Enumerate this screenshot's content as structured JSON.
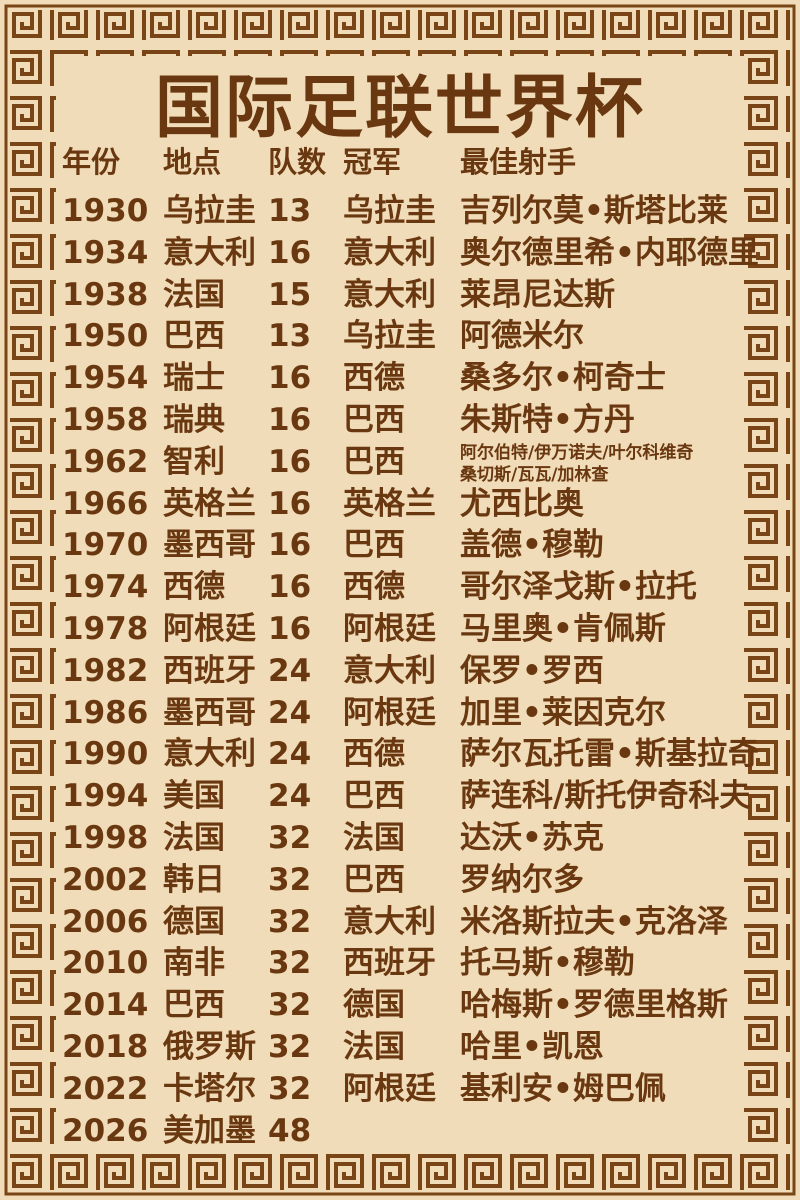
{
  "title": "国际足联世界杯",
  "table": {
    "header": [
      "年份",
      "地点",
      "队数",
      "冠军",
      "最佳射手"
    ],
    "rows": [
      [
        "1930",
        "乌拉圭",
        13,
        "乌拉圭",
        "吉列尔莫•斯塔比莱"
      ],
      [
        "1934",
        "意大利",
        16,
        "意大利",
        "奥尔德里希•内耶德里"
      ],
      [
        "1938",
        "法国",
        15,
        "意大利",
        "莱昂尼达斯"
      ],
      [
        "1950",
        "巴西",
        13,
        "乌拉圭",
        "阿德米尔"
      ],
      [
        "1954",
        "瑞士",
        16,
        "西德",
        "桑多尔•柯奇士"
      ],
      [
        "1958",
        "瑞典",
        16,
        "巴西",
        "朱斯特•方丹"
      ],
      [
        "1962",
        "智利",
        16,
        "巴西",
        [
          "阿尔伯特/伊万诺夫/叶尔科维奇",
          "桑切斯/瓦瓦/加林查"
        ]
      ],
      [
        "1966",
        "英格兰",
        16,
        "英格兰",
        "尤西比奥"
      ],
      [
        "1970",
        "墨西哥",
        16,
        "巴西",
        "盖德•穆勒"
      ],
      [
        "1974",
        "西德",
        16,
        "西德",
        "哥尔泽戈斯•拉托"
      ],
      [
        "1978",
        "阿根廷",
        16,
        "阿根廷",
        "马里奥•肯佩斯"
      ],
      [
        "1982",
        "西班牙",
        24,
        "意大利",
        "保罗•罗西"
      ],
      [
        "1986",
        "墨西哥",
        24,
        "阿根廷",
        "加里•莱因克尔"
      ],
      [
        "1990",
        "意大利",
        24,
        "西德",
        "萨尔瓦托雷•斯基拉奇"
      ],
      [
        "1994",
        "美国",
        24,
        "巴西",
        "萨连科/斯托伊奇科夫"
      ],
      [
        "1998",
        "法国",
        32,
        "法国",
        "达沃•苏克"
      ],
      [
        "2002",
        "韩日",
        32,
        "巴西",
        "罗纳尔多"
      ],
      [
        "2006",
        "德国",
        32,
        "意大利",
        "米洛斯拉夫•克洛泽"
      ],
      [
        "2010",
        "南非",
        32,
        "西班牙",
        "托马斯•穆勒"
      ],
      [
        "2014",
        "巴西",
        32,
        "德国",
        "哈梅斯•罗德里格斯"
      ],
      [
        "2018",
        "俄罗斯",
        32,
        "法国",
        "哈里•凯恩"
      ],
      [
        "2022",
        "卡塔尔",
        32,
        "阿根廷",
        "基利安•姆巴佩"
      ],
      [
        "2026",
        "美加墨",
        48
      ]
    ]
  }
}
